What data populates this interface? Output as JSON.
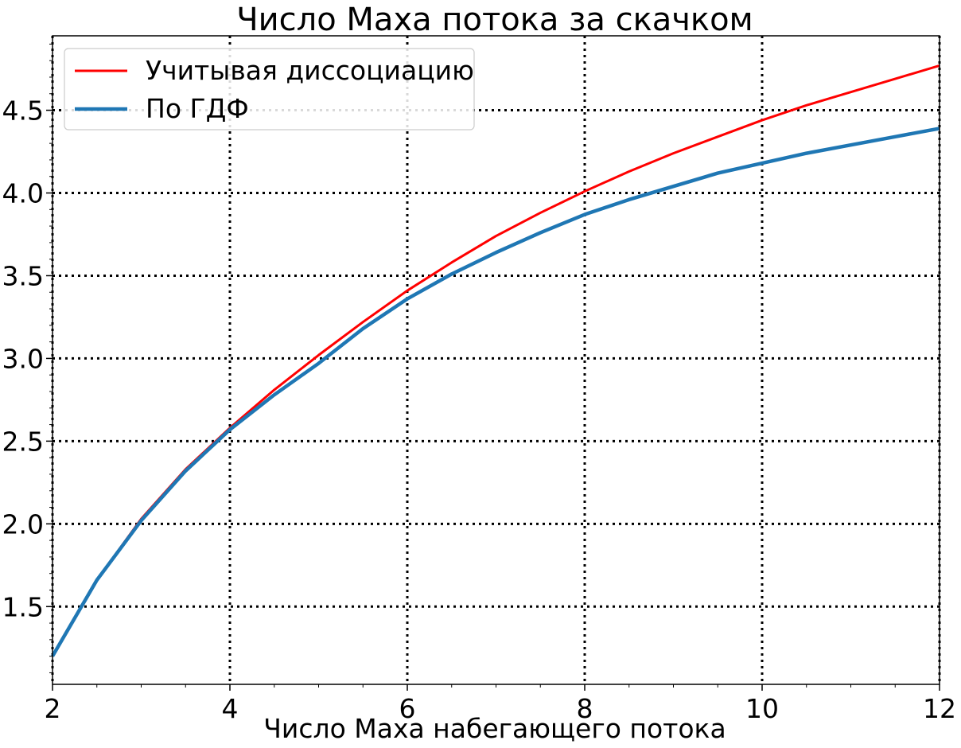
{
  "chart_data": {
    "type": "line",
    "title": "Число Маха потока за скачком",
    "xlabel": "Число Маха набегающего потока",
    "ylabel": "",
    "xlim": [
      2,
      12
    ],
    "ylim": [
      1.03,
      4.95
    ],
    "xticks": [
      2,
      4,
      6,
      8,
      10,
      12
    ],
    "xtick_labels": [
      "2",
      "4",
      "6",
      "8",
      "10",
      "12"
    ],
    "yticks": [
      1.5,
      2.0,
      2.5,
      3.0,
      3.5,
      4.0,
      4.5
    ],
    "ytick_labels": [
      "1.5",
      "2.0",
      "2.5",
      "3.0",
      "3.5",
      "4.0",
      "4.5"
    ],
    "grid": true,
    "legend_position": "top-left",
    "x": [
      2,
      2.5,
      3,
      3.5,
      4,
      4.5,
      5,
      5.5,
      6,
      6.5,
      7,
      7.5,
      8,
      8.5,
      9,
      9.5,
      10,
      10.5,
      11,
      11.5,
      12
    ],
    "series": [
      {
        "name": "Учитывая диссоциацию",
        "color": "#ff0000",
        "values": [
          1.2,
          1.66,
          2.03,
          2.33,
          2.58,
          2.81,
          3.02,
          3.22,
          3.41,
          3.58,
          3.74,
          3.88,
          4.01,
          4.13,
          4.24,
          4.34,
          4.44,
          4.53,
          4.61,
          4.69,
          4.77
        ]
      },
      {
        "name": "По ГДФ",
        "color": "#1f77b4",
        "values": [
          1.2,
          1.66,
          2.02,
          2.32,
          2.57,
          2.78,
          2.97,
          3.18,
          3.36,
          3.51,
          3.64,
          3.76,
          3.87,
          3.96,
          4.04,
          4.12,
          4.18,
          4.24,
          4.29,
          4.34,
          4.39
        ]
      }
    ]
  }
}
